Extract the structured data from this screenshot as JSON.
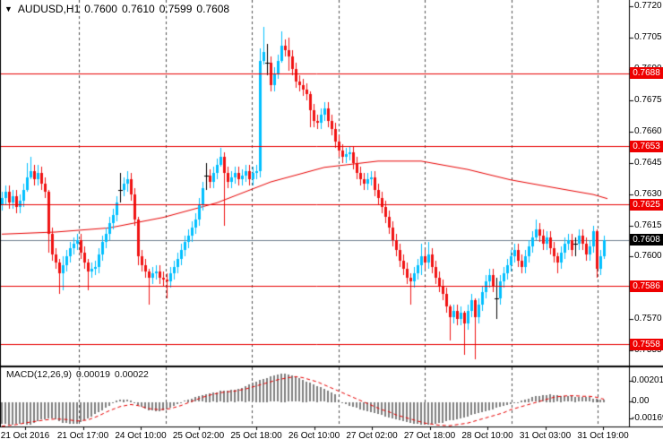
{
  "header": {
    "marker": "▼",
    "symbol_period": "AUDUSD,H1",
    "open": "0.7600",
    "high": "0.7610",
    "low": "0.7599",
    "close": "0.7608"
  },
  "macd_header": {
    "label": "MACD(12,26,9)",
    "value_main": "0.00019",
    "value_signal": "0.00022"
  },
  "price_axis": {
    "ticks": [
      "0.7720",
      "0.7705",
      "0.7690",
      "0.7675",
      "0.7660",
      "0.7645",
      "0.7630",
      "0.7615",
      "0.7600",
      "0.7585",
      "0.7570",
      "0.7555"
    ]
  },
  "macd_axis": {
    "ticks": [
      "0.00201",
      "0.00",
      "-0.00169"
    ]
  },
  "time_axis": {
    "labels": [
      "21 Oct 2016",
      "21 Oct 17:00",
      "24 Oct 10:00",
      "25 Oct 02:00",
      "25 Oct 18:00",
      "26 Oct 10:00",
      "27 Oct 02:00",
      "27 Oct 18:00",
      "28 Oct 10:00",
      "31 Oct 03:00",
      "31 Oct 19:00"
    ]
  },
  "colors": {
    "background": "#ffffff",
    "bull": "#00BFFF",
    "bear": "#F01212",
    "doji": "#000000",
    "level_line": "#E80000",
    "level_badge_bg": "#EE0000",
    "bid_line": "#708090",
    "bid_badge_bg": "#000000",
    "badge_text": "#ffffff",
    "ma_line": "#E80000",
    "macd_hist": "#808080",
    "macd_signal": "#E80000",
    "grid": "#4d4d4d",
    "border": "#000000",
    "text": "#000000"
  },
  "chart_data": [
    {
      "type": "candlestick",
      "title": "AUDUSD,H1",
      "ylim": [
        0.75478,
        0.7723
      ],
      "levels": [
        {
          "price": 0.7688,
          "label": "0.7688"
        },
        {
          "price": 0.7653,
          "label": "0.7653"
        },
        {
          "price": 0.7625,
          "label": "0.7625"
        },
        {
          "price": 0.7586,
          "label": "0.7586"
        },
        {
          "price": 0.7558,
          "label": "0.7558"
        }
      ],
      "bid": {
        "price": 0.7608,
        "label": "0.7608"
      },
      "first_open": 0.7625,
      "default_wick": 0.0003,
      "closes": [
        0.7628,
        0.7631,
        0.7626,
        0.7629,
        0.7624,
        0.7627,
        0.7632,
        0.7638,
        0.7641,
        0.7637,
        0.764,
        0.7635,
        0.7631,
        0.7611,
        0.7601,
        0.7597,
        0.7592,
        0.7596,
        0.76,
        0.7604,
        0.7606,
        0.7608,
        0.7602,
        0.7597,
        0.7593,
        0.7594,
        0.7595,
        0.7601,
        0.7607,
        0.7611,
        0.7616,
        0.762,
        0.7626,
        0.7632,
        0.7635,
        0.7637,
        0.763,
        0.7618,
        0.76,
        0.7596,
        0.7593,
        0.759,
        0.7592,
        0.7593,
        0.759,
        0.7589,
        0.7588,
        0.7592,
        0.7595,
        0.7599,
        0.7603,
        0.7607,
        0.761,
        0.7614,
        0.7618,
        0.7625,
        0.7633,
        0.7639,
        0.7636,
        0.764,
        0.7644,
        0.7648,
        0.764,
        0.7636,
        0.7638,
        0.764,
        0.7637,
        0.7639,
        0.7641,
        0.7637,
        0.764,
        0.7641,
        0.7694,
        0.7698,
        0.7693,
        0.7682,
        0.7688,
        0.7694,
        0.7701,
        0.7699,
        0.7696,
        0.769,
        0.7684,
        0.7682,
        0.768,
        0.7678,
        0.767,
        0.7665,
        0.7664,
        0.7668,
        0.7671,
        0.7665,
        0.7661,
        0.7655,
        0.7651,
        0.7648,
        0.7649,
        0.765,
        0.7645,
        0.764,
        0.7637,
        0.7635,
        0.7637,
        0.7638,
        0.7632,
        0.7628,
        0.7624,
        0.7619,
        0.7614,
        0.7608,
        0.7603,
        0.7598,
        0.7594,
        0.759,
        0.7588,
        0.7592,
        0.7596,
        0.76,
        0.7597,
        0.7601,
        0.7595,
        0.759,
        0.7586,
        0.7582,
        0.7576,
        0.7571,
        0.7574,
        0.757,
        0.7573,
        0.7568,
        0.7574,
        0.7579,
        0.7571,
        0.7577,
        0.7583,
        0.7588,
        0.7591,
        0.7586,
        0.758,
        0.7588,
        0.7592,
        0.7596,
        0.76,
        0.7603,
        0.7598,
        0.7595,
        0.76,
        0.7605,
        0.7609,
        0.7613,
        0.761,
        0.7606,
        0.7609,
        0.7604,
        0.76,
        0.7597,
        0.7602,
        0.7606,
        0.7608,
        0.7603,
        0.7606,
        0.761,
        0.7606,
        0.7601,
        0.7605,
        0.7612,
        0.7594,
        0.76,
        0.7608
      ],
      "doji_indices": [
        33,
        57,
        74,
        138,
        160
      ],
      "wick_overrides": {
        "7": [
          0.7645,
          0.7631
        ],
        "8": [
          0.7648,
          0.7637
        ],
        "10": [
          0.7644,
          0.7634
        ],
        "13": [
          0.7632,
          0.7602
        ],
        "16": [
          0.7599,
          0.7582
        ],
        "17": [
          0.76,
          0.7584
        ],
        "24": [
          0.7599,
          0.7584
        ],
        "33": [
          0.764,
          0.7626
        ],
        "35": [
          0.7641,
          0.7631
        ],
        "38": [
          0.7619,
          0.7596
        ],
        "41": [
          0.7594,
          0.7577
        ],
        "46": [
          0.7592,
          0.758
        ],
        "57": [
          0.7645,
          0.7632
        ],
        "61": [
          0.7652,
          0.7643
        ],
        "62": [
          0.765,
          0.7615
        ],
        "72": [
          0.77,
          0.7638
        ],
        "73": [
          0.771,
          0.7692
        ],
        "74": [
          0.7702,
          0.7687
        ],
        "78": [
          0.7708,
          0.7693
        ],
        "80": [
          0.7705,
          0.7689
        ],
        "86": [
          0.7679,
          0.7662
        ],
        "114": [
          0.7592,
          0.7577
        ],
        "117": [
          0.7606,
          0.7591
        ],
        "119": [
          0.7607,
          0.7594
        ],
        "125": [
          0.7577,
          0.756
        ],
        "129": [
          0.7574,
          0.7553
        ],
        "132": [
          0.758,
          0.7551
        ],
        "138": [
          0.759,
          0.757
        ],
        "149": [
          0.7618,
          0.7608
        ],
        "155": [
          0.7602,
          0.7592
        ],
        "166": [
          0.7613,
          0.759
        ],
        "168": [
          0.761,
          0.7599
        ]
      },
      "ma_points": [
        [
          0,
          0.7611
        ],
        [
          15,
          0.7612
        ],
        [
          30,
          0.7614
        ],
        [
          45,
          0.7619
        ],
        [
          60,
          0.7626
        ],
        [
          75,
          0.7636
        ],
        [
          90,
          0.7643
        ],
        [
          105,
          0.7646
        ],
        [
          117,
          0.7646
        ],
        [
          130,
          0.7642
        ],
        [
          142,
          0.7637
        ],
        [
          155,
          0.7633
        ],
        [
          165,
          0.763
        ],
        [
          169,
          0.7628
        ]
      ]
    },
    {
      "type": "bar",
      "name": "MACD(12,26,9)",
      "unit": 0.0001,
      "ylim": [
        -0.00243,
        0.0033
      ],
      "hist": [
        -21,
        -21.5,
        -22,
        -22,
        -21.5,
        -21,
        -21.5,
        -22,
        -22,
        -20,
        -18.5,
        -17,
        -16.5,
        -16,
        -16,
        -17,
        -18.5,
        -20,
        -20.5,
        -21,
        -21,
        -21,
        -19.5,
        -18,
        -16,
        -14,
        -12,
        -10,
        -8,
        -6,
        -4,
        -1.5,
        1,
        1.5,
        2,
        1.5,
        1,
        -1,
        -3,
        -5,
        -6.5,
        -8,
        -8.5,
        -9,
        -9,
        -8,
        -7,
        -6,
        -4,
        -2.5,
        -1,
        0.5,
        2,
        3,
        4,
        5,
        6,
        7,
        8,
        8.5,
        9,
        10,
        10.5,
        10.5,
        11,
        11.5,
        12,
        13,
        15,
        16.5,
        18,
        19.5,
        21,
        22,
        23,
        24,
        25,
        26,
        27,
        27,
        26,
        25,
        24,
        22.5,
        21,
        19.5,
        18,
        16.5,
        15,
        13.5,
        12,
        10.5,
        9,
        7,
        2,
        -1,
        -2.5,
        -4,
        -5,
        -6,
        -7,
        -8,
        -9,
        -10,
        -11,
        -12,
        -13,
        -14,
        -15,
        -16,
        -17,
        -18,
        -18.5,
        -19.5,
        -20,
        -21,
        -21.5,
        -22,
        -22,
        -22,
        -21.5,
        -21,
        -20.5,
        -20,
        -19,
        -18,
        -17.5,
        -17,
        -16,
        -15,
        -14,
        -13,
        -12,
        -11,
        -10,
        -9,
        -8,
        -7,
        -6,
        -5,
        -4,
        -3,
        -2,
        -1.5,
        -1,
        1,
        2,
        3,
        4,
        5,
        5.5,
        6,
        6.5,
        7,
        6.5,
        6,
        5.5,
        5,
        5,
        5,
        4.5,
        4,
        4,
        4,
        4,
        3,
        3,
        2,
        1.9
      ],
      "signal_points": [
        [
          0,
          -24
        ],
        [
          4,
          -22.5
        ],
        [
          8,
          -20
        ],
        [
          12,
          -18
        ],
        [
          15,
          -17
        ],
        [
          18,
          -17.5
        ],
        [
          21,
          -19
        ],
        [
          24,
          -18
        ],
        [
          27,
          -14
        ],
        [
          30,
          -9
        ],
        [
          33,
          -5
        ],
        [
          36,
          -3
        ],
        [
          38,
          -4
        ],
        [
          41,
          -7
        ],
        [
          44,
          -8
        ],
        [
          47,
          -7
        ],
        [
          50,
          -4
        ],
        [
          53,
          0
        ],
        [
          56,
          4
        ],
        [
          59,
          7
        ],
        [
          62,
          9
        ],
        [
          65,
          10
        ],
        [
          68,
          12
        ],
        [
          71,
          15
        ],
        [
          74,
          18
        ],
        [
          77,
          21
        ],
        [
          80,
          23
        ],
        [
          82,
          24
        ],
        [
          84,
          23
        ],
        [
          86,
          21
        ],
        [
          88,
          19
        ],
        [
          90,
          16
        ],
        [
          92,
          13
        ],
        [
          94,
          10
        ],
        [
          96,
          7
        ],
        [
          98,
          4
        ],
        [
          100,
          1
        ],
        [
          102,
          -2
        ],
        [
          104,
          -5
        ],
        [
          106,
          -8
        ],
        [
          108,
          -10
        ],
        [
          110,
          -13
        ],
        [
          112,
          -15
        ],
        [
          114,
          -17
        ],
        [
          116,
          -19
        ],
        [
          118,
          -21
        ],
        [
          120,
          -22
        ],
        [
          122,
          -23
        ],
        [
          125,
          -23.5
        ],
        [
          128,
          -22
        ],
        [
          130,
          -21
        ],
        [
          132,
          -19
        ],
        [
          134,
          -17
        ],
        [
          136,
          -15
        ],
        [
          138,
          -13
        ],
        [
          140,
          -11
        ],
        [
          142,
          -8
        ],
        [
          144,
          -6
        ],
        [
          146,
          -4
        ],
        [
          148,
          -2
        ],
        [
          150,
          0
        ],
        [
          152,
          2
        ],
        [
          154,
          4
        ],
        [
          156,
          5
        ],
        [
          158,
          5.5
        ],
        [
          160,
          5.5
        ],
        [
          162,
          5
        ],
        [
          164,
          5
        ],
        [
          166,
          4
        ],
        [
          167,
          3
        ],
        [
          168,
          2.2
        ]
      ]
    }
  ]
}
